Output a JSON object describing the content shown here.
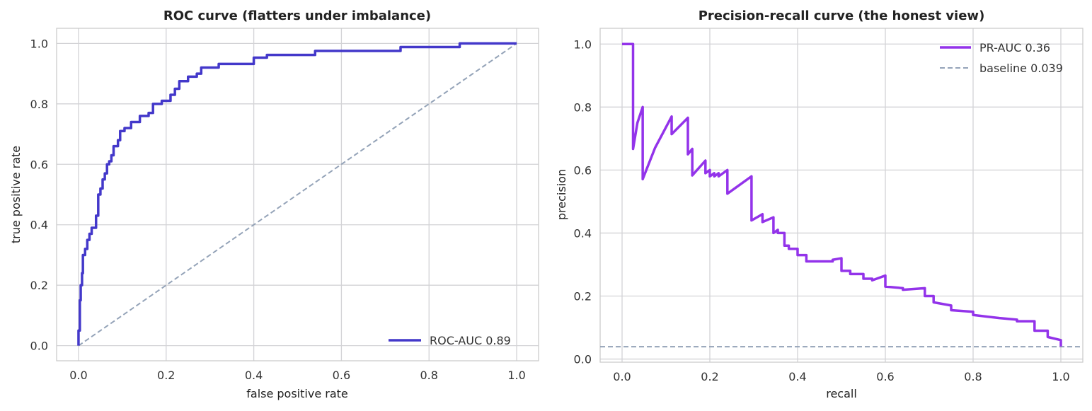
{
  "chart_data": [
    {
      "type": "line",
      "title": "ROC curve (flatters under imbalance)",
      "xlabel": "false positive rate",
      "ylabel": "true positive rate",
      "xlim": [
        -0.05,
        1.05
      ],
      "ylim": [
        -0.05,
        1.05
      ],
      "xticks": [
        "0.0",
        "0.2",
        "0.4",
        "0.6",
        "0.8",
        "1.0"
      ],
      "yticks": [
        "0.0",
        "0.2",
        "0.4",
        "0.6",
        "0.8",
        "1.0"
      ],
      "grid": true,
      "legend": {
        "position": "lower right"
      },
      "series": [
        {
          "name": "ROC-AUC 0.89",
          "color": "#4338ca",
          "style": "solid",
          "x": [
            0.0,
            0.0,
            0.003,
            0.003,
            0.005,
            0.005,
            0.008,
            0.008,
            0.01,
            0.01,
            0.015,
            0.015,
            0.02,
            0.02,
            0.025,
            0.025,
            0.03,
            0.03,
            0.04,
            0.04,
            0.045,
            0.045,
            0.05,
            0.05,
            0.055,
            0.055,
            0.06,
            0.06,
            0.065,
            0.065,
            0.07,
            0.07,
            0.075,
            0.075,
            0.08,
            0.08,
            0.09,
            0.09,
            0.095,
            0.095,
            0.105,
            0.105,
            0.12,
            0.12,
            0.14,
            0.14,
            0.16,
            0.16,
            0.17,
            0.17,
            0.18,
            0.18,
            0.19,
            0.19,
            0.21,
            0.21,
            0.22,
            0.22,
            0.23,
            0.23,
            0.24,
            0.24,
            0.25,
            0.25,
            0.27,
            0.27,
            0.28,
            0.28,
            0.29,
            0.29,
            0.32,
            0.32,
            0.4,
            0.4,
            0.43,
            0.43,
            0.54,
            0.54,
            0.735,
            0.735,
            0.87,
            0.87,
            1.0
          ],
          "y": [
            0.0,
            0.05,
            0.05,
            0.15,
            0.15,
            0.2,
            0.2,
            0.24,
            0.24,
            0.3,
            0.3,
            0.32,
            0.32,
            0.35,
            0.35,
            0.37,
            0.37,
            0.39,
            0.39,
            0.43,
            0.43,
            0.5,
            0.5,
            0.52,
            0.52,
            0.55,
            0.55,
            0.57,
            0.57,
            0.6,
            0.6,
            0.61,
            0.61,
            0.63,
            0.63,
            0.66,
            0.66,
            0.68,
            0.68,
            0.71,
            0.71,
            0.72,
            0.72,
            0.74,
            0.74,
            0.76,
            0.76,
            0.77,
            0.77,
            0.8,
            0.8,
            0.8,
            0.8,
            0.81,
            0.81,
            0.83,
            0.83,
            0.85,
            0.85,
            0.875,
            0.875,
            0.875,
            0.875,
            0.89,
            0.89,
            0.9,
            0.9,
            0.92,
            0.92,
            0.92,
            0.92,
            0.932,
            0.932,
            0.953,
            0.953,
            0.962,
            0.962,
            0.975,
            0.975,
            0.988,
            0.988,
            1.0,
            1.0
          ]
        },
        {
          "name": "",
          "color": "#94a3b8",
          "style": "dashed",
          "x": [
            0.0,
            1.0
          ],
          "y": [
            0.0,
            1.0
          ]
        }
      ]
    },
    {
      "type": "line",
      "title": "Precision-recall curve (the honest view)",
      "xlabel": "recall",
      "ylabel": "precision",
      "xlim": [
        -0.05,
        1.05
      ],
      "ylim": [
        -0.01,
        1.05
      ],
      "xticks": [
        "0.0",
        "0.2",
        "0.4",
        "0.6",
        "0.8",
        "1.0"
      ],
      "yticks": [
        "0.0",
        "0.2",
        "0.4",
        "0.6",
        "0.8",
        "1.0"
      ],
      "grid": true,
      "legend": {
        "position": "upper right"
      },
      "series": [
        {
          "name": "PR-AUC 0.36",
          "color": "#9333ea",
          "style": "solid",
          "x": [
            0.0,
            0.025,
            0.025,
            0.035,
            0.047,
            0.047,
            0.075,
            0.113,
            0.113,
            0.15,
            0.15,
            0.16,
            0.16,
            0.19,
            0.19,
            0.2,
            0.2,
            0.21,
            0.21,
            0.22,
            0.22,
            0.24,
            0.24,
            0.295,
            0.295,
            0.32,
            0.32,
            0.345,
            0.345,
            0.355,
            0.355,
            0.37,
            0.37,
            0.38,
            0.38,
            0.4,
            0.4,
            0.42,
            0.42,
            0.44,
            0.44,
            0.46,
            0.46,
            0.48,
            0.48,
            0.5,
            0.5,
            0.52,
            0.52,
            0.55,
            0.55,
            0.57,
            0.57,
            0.6,
            0.6,
            0.64,
            0.64,
            0.69,
            0.69,
            0.71,
            0.71,
            0.75,
            0.75,
            0.8,
            0.8,
            0.86,
            0.86,
            0.9,
            0.9,
            0.94,
            0.94,
            0.97,
            0.97,
            1.0,
            1.0
          ],
          "y": [
            1.0,
            1.0,
            0.667,
            0.75,
            0.8,
            0.571,
            0.67,
            0.77,
            0.714,
            0.766,
            0.65,
            0.667,
            0.583,
            0.63,
            0.59,
            0.6,
            0.58,
            0.59,
            0.58,
            0.59,
            0.58,
            0.6,
            0.525,
            0.58,
            0.44,
            0.46,
            0.435,
            0.45,
            0.4,
            0.41,
            0.4,
            0.4,
            0.36,
            0.36,
            0.35,
            0.35,
            0.33,
            0.33,
            0.31,
            0.31,
            0.31,
            0.31,
            0.31,
            0.31,
            0.315,
            0.32,
            0.28,
            0.28,
            0.27,
            0.27,
            0.255,
            0.255,
            0.25,
            0.265,
            0.23,
            0.225,
            0.22,
            0.225,
            0.2,
            0.2,
            0.18,
            0.17,
            0.155,
            0.15,
            0.14,
            0.13,
            0.13,
            0.125,
            0.12,
            0.12,
            0.09,
            0.09,
            0.07,
            0.06,
            0.04
          ]
        },
        {
          "name": "baseline 0.039",
          "color": "#94a3b8",
          "style": "dashed",
          "x": [
            -0.05,
            1.05
          ],
          "y": [
            0.039,
            0.039
          ]
        }
      ]
    }
  ]
}
